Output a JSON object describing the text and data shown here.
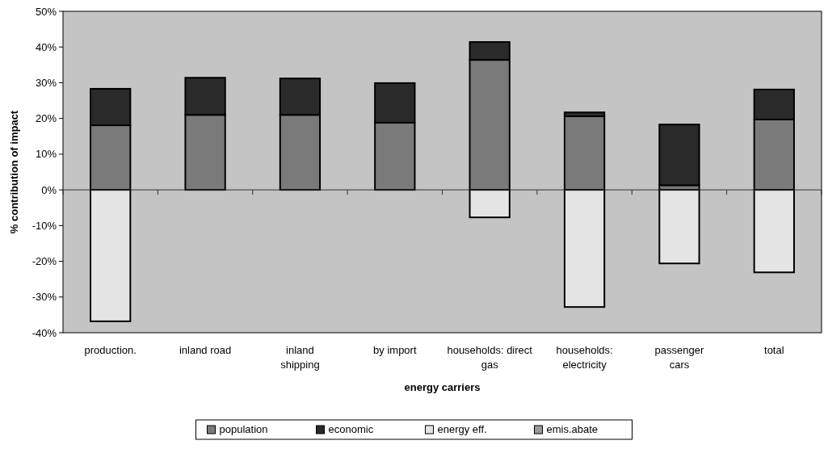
{
  "chart_data": {
    "type": "bar",
    "stacked": true,
    "xlabel": "energy carriers",
    "ylabel": "% contribution of impact",
    "categories": [
      "production.",
      "inland road",
      "inland shipping",
      "by import",
      "households: direct gas",
      "households: electricity",
      "passenger cars",
      "total"
    ],
    "series": [
      {
        "name": "population",
        "color": "#7a7a7a",
        "values": [
          18.1,
          21,
          21,
          18.8,
          36.4,
          20.6,
          1.3,
          19.7
        ]
      },
      {
        "name": "economic",
        "color": "#2a2a2a",
        "values": [
          10.2,
          10.4,
          10.2,
          11.1,
          5,
          1.1,
          17,
          8.4
        ]
      },
      {
        "name": "energy eff.",
        "color": "#e4e4e4",
        "values": [
          -36.8,
          null,
          null,
          null,
          -7.7,
          -32.8,
          -20.6,
          -23.1
        ]
      },
      {
        "name": "emis.abate",
        "color": "#9a9a9a",
        "values": [
          null,
          null,
          null,
          null,
          null,
          null,
          null,
          null
        ]
      }
    ],
    "ylim": [
      -40,
      50
    ],
    "yticks": [
      {
        "value": -40,
        "label": "-40%"
      },
      {
        "value": -30,
        "label": "-30%"
      },
      {
        "value": -20,
        "label": "-20%"
      },
      {
        "value": -10,
        "label": "-10%"
      },
      {
        "value": 0,
        "label": "0%"
      },
      {
        "value": 10,
        "label": "10%"
      },
      {
        "value": 20,
        "label": "20%"
      },
      {
        "value": 30,
        "label": "30%"
      },
      {
        "value": 40,
        "label": "40%"
      },
      {
        "value": 50,
        "label": "50%"
      }
    ],
    "legend": "bottom"
  }
}
